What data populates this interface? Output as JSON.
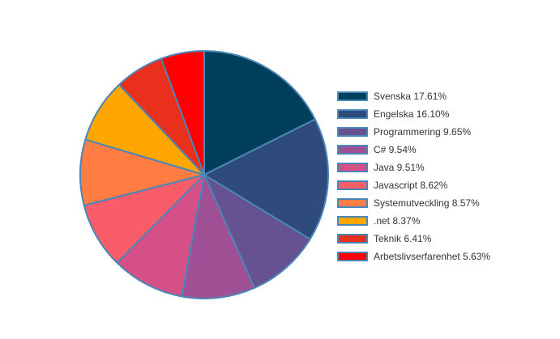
{
  "chart_data": {
    "type": "pie",
    "title": "",
    "legend_position": "right",
    "slices": [
      {
        "label": "Svenska",
        "percent_label": "17.61%",
        "value": 17.61,
        "color": "#003f5c"
      },
      {
        "label": "Engelska",
        "percent_label": "16.10%",
        "value": 16.1,
        "color": "#2f4b7c"
      },
      {
        "label": "Programmering",
        "percent_label": "9.65%",
        "value": 9.65,
        "color": "#665191"
      },
      {
        "label": "C#",
        "percent_label": "9.54%",
        "value": 9.54,
        "color": "#a05195"
      },
      {
        "label": "Java",
        "percent_label": "9.51%",
        "value": 9.51,
        "color": "#d45087"
      },
      {
        "label": "Javascript",
        "percent_label": "8.62%",
        "value": 8.62,
        "color": "#f95d6a"
      },
      {
        "label": "Systemutveckling",
        "percent_label": "8.57%",
        "value": 8.57,
        "color": "#ff7c43"
      },
      {
        "label": ".net",
        "percent_label": "8.37%",
        "value": 8.37,
        "color": "#ffa600"
      },
      {
        "label": "Teknik",
        "percent_label": "6.41%",
        "value": 6.41,
        "color": "#e8301c"
      },
      {
        "label": "Arbetslivserfarenhet",
        "percent_label": "5.63%",
        "value": 5.63,
        "color": "#ff0000"
      }
    ],
    "slice_border_color": "#4a86b8"
  }
}
